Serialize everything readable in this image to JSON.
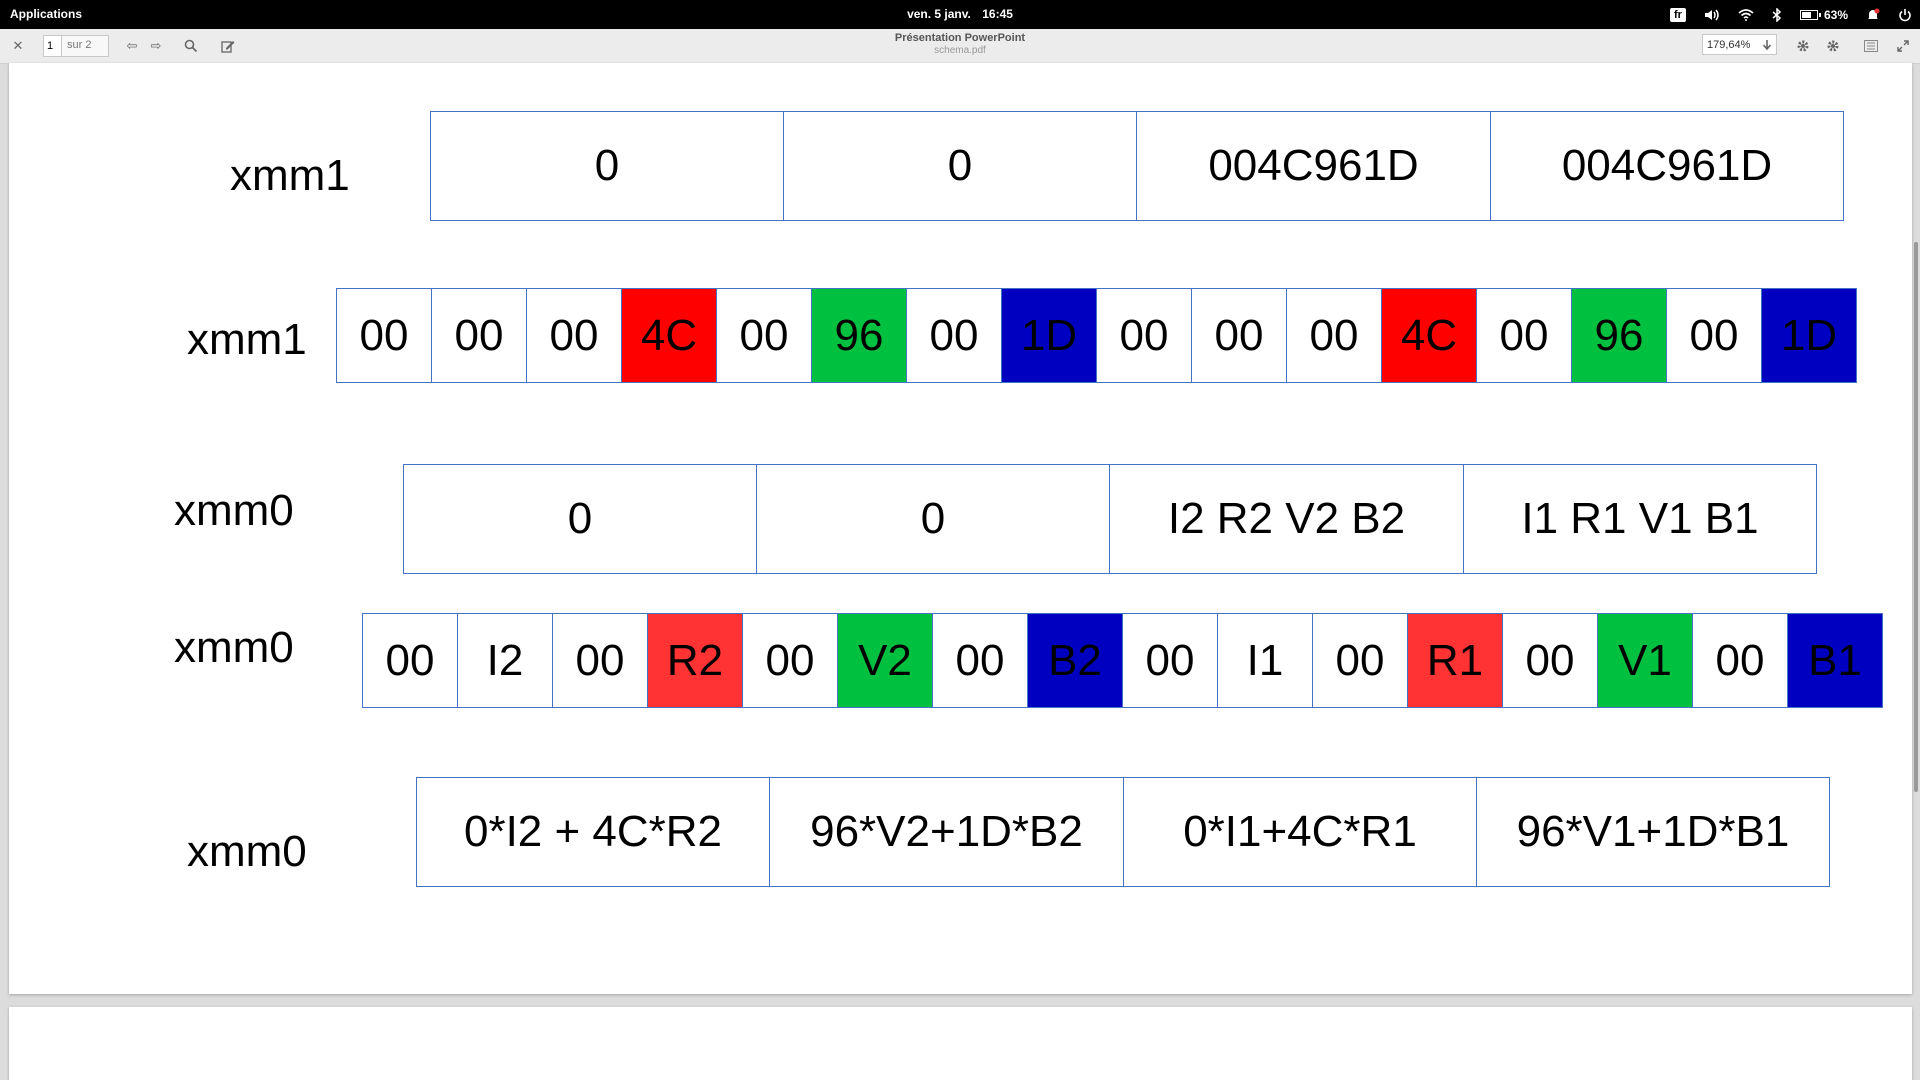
{
  "topbar": {
    "applications": "Applications",
    "date": "ven. 5 janv.",
    "time": "16:45",
    "language": "fr",
    "battery": "63%"
  },
  "toolbar": {
    "page_current": "1",
    "page_of": "sur 2",
    "title": "Présentation PowerPoint",
    "filename": "schema.pdf",
    "zoom": "179,64%"
  },
  "colors": {
    "red": "#ff0000",
    "green": "#00c040",
    "blue": "#0000c0",
    "border": "#4472c4"
  },
  "diagram": {
    "row1": {
      "label": "xmm1",
      "cells": [
        "0",
        "0",
        "004C961D",
        "004C961D"
      ]
    },
    "row2": {
      "label": "xmm1",
      "cells": [
        "00",
        "00",
        "00",
        "4C",
        "00",
        "96",
        "00",
        "1D",
        "00",
        "00",
        "00",
        "4C",
        "00",
        "96",
        "00",
        "1D"
      ]
    },
    "row3": {
      "label": "xmm0",
      "cells": [
        "0",
        "0",
        "I2 R2 V2 B2",
        "I1 R1 V1 B1"
      ]
    },
    "row4": {
      "label": "xmm0",
      "cells": [
        "00",
        "I2",
        "00",
        "R2",
        "00",
        "V2",
        "00",
        "B2",
        "00",
        "I1",
        "00",
        "R1",
        "00",
        "V1",
        "00",
        "B1"
      ]
    },
    "row5": {
      "label": "xmm0",
      "cells": [
        "0*I2 + 4C*R2",
        "96*V2+1D*B2",
        "0*I1+4C*R1",
        "96*V1+1D*B1"
      ]
    }
  }
}
